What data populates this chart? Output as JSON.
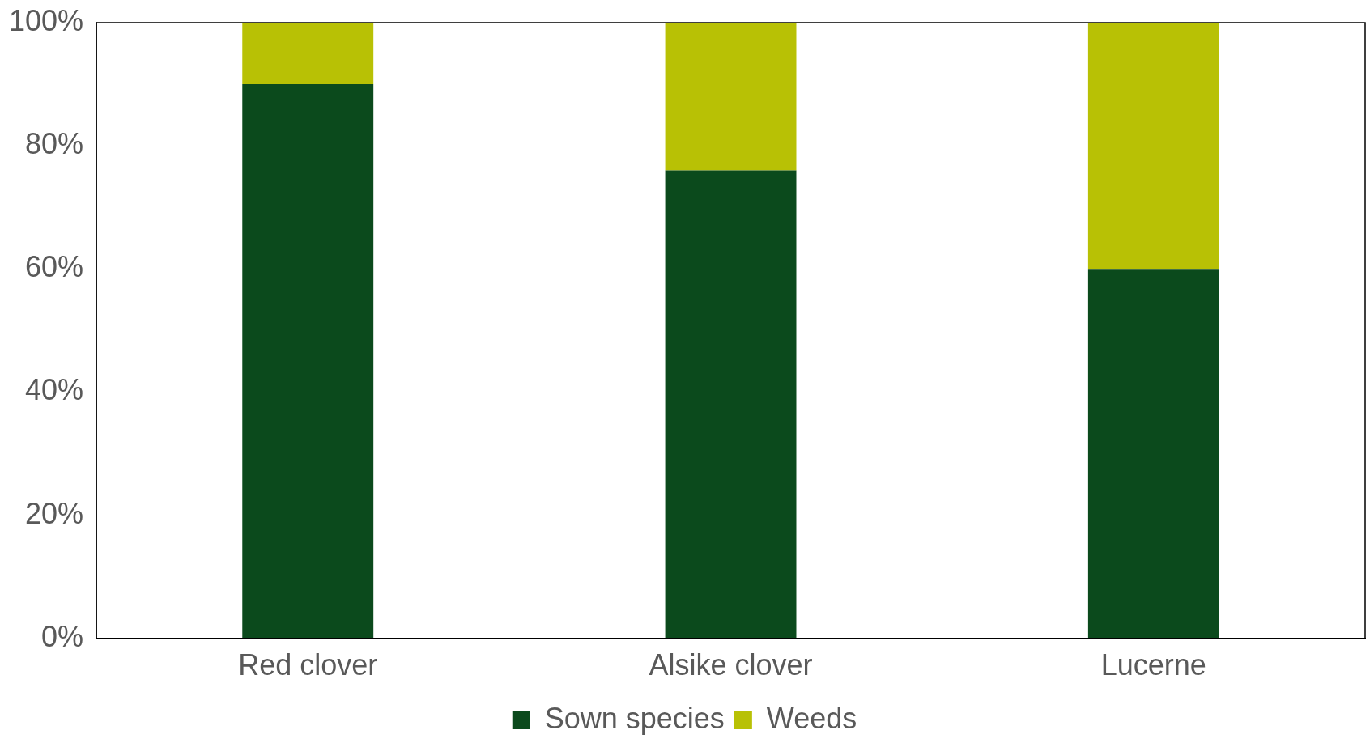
{
  "chart_data": {
    "type": "bar",
    "stacked": true,
    "categories": [
      "Red clover",
      "Alsike clover",
      "Lucerne"
    ],
    "series": [
      {
        "name": "Sown species",
        "color": "#0b4a1c",
        "values": [
          90,
          76,
          60
        ]
      },
      {
        "name": "Weeds",
        "color": "#b8c105",
        "values": [
          10,
          24,
          40
        ]
      }
    ],
    "ylim": [
      0,
      100
    ],
    "yticks": [
      {
        "value": 0,
        "label": "0%"
      },
      {
        "value": 20,
        "label": "20%"
      },
      {
        "value": 40,
        "label": "40%"
      },
      {
        "value": 60,
        "label": "60%"
      },
      {
        "value": 80,
        "label": "80%"
      },
      {
        "value": 100,
        "label": "100%"
      }
    ],
    "legend": "bottom"
  }
}
